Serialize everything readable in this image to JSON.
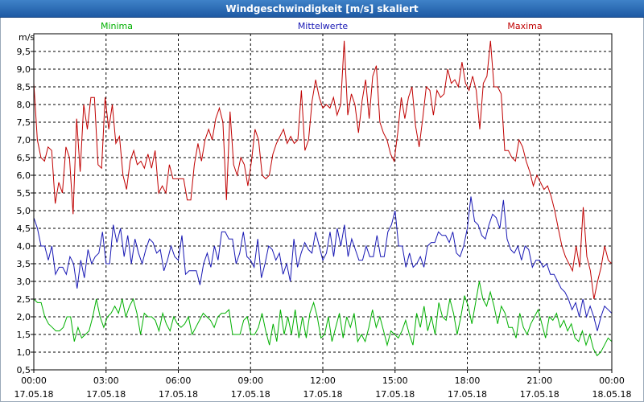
{
  "window": {
    "title": "Windgeschwindigkeit [m/s] skaliert"
  },
  "chart_data": {
    "type": "line",
    "title": "Windgeschwindigkeit [m/s] skaliert",
    "ylabel": "m/s",
    "xlabel": "",
    "ylim": [
      0.5,
      10.0
    ],
    "xlim": [
      0,
      24
    ],
    "yticks": [
      "0,5",
      "1,0",
      "1,5",
      "2,0",
      "2,5",
      "3,0",
      "3,5",
      "4,0",
      "4,5",
      "5,0",
      "5,5",
      "6,0",
      "6,5",
      "7,0",
      "7,5",
      "8,0",
      "8,5",
      "9,0",
      "9,5"
    ],
    "xticks": [
      {
        "time": "00:00",
        "date": "17.05.18"
      },
      {
        "time": "03:00",
        "date": "17.05.18"
      },
      {
        "time": "06:00",
        "date": "17.05.18"
      },
      {
        "time": "09:00",
        "date": "17.05.18"
      },
      {
        "time": "12:00",
        "date": "17.05.18"
      },
      {
        "time": "15:00",
        "date": "17.05.18"
      },
      {
        "time": "18:00",
        "date": "17.05.18"
      },
      {
        "time": "21:00",
        "date": "17.05.18"
      },
      {
        "time": "00:00",
        "date": "18.05.18"
      }
    ],
    "series": [
      {
        "name": "Minima",
        "color": "#00b000",
        "values": [
          2.5,
          2.4,
          2.4,
          2.0,
          1.8,
          1.7,
          1.6,
          1.6,
          1.7,
          2.0,
          2.0,
          1.3,
          1.7,
          1.4,
          1.5,
          1.6,
          2.0,
          2.5,
          2.0,
          1.7,
          2.0,
          2.1,
          2.3,
          2.1,
          2.5,
          2.0,
          2.3,
          2.5,
          2.1,
          1.5,
          2.1,
          2.0,
          2.0,
          1.9,
          1.6,
          2.1,
          1.8,
          1.6,
          2.0,
          1.8,
          1.7,
          1.8,
          2.0,
          1.5,
          1.7,
          1.9,
          2.1,
          2.0,
          1.9,
          1.7,
          2.0,
          2.1,
          2.1,
          2.2,
          1.5,
          1.5,
          1.5,
          1.9,
          2.0,
          1.5,
          1.5,
          1.7,
          2.1,
          1.6,
          1.2,
          1.8,
          1.3,
          2.2,
          1.5,
          2.0,
          1.5,
          2.2,
          1.4,
          2.0,
          1.4,
          2.1,
          2.4,
          2.0,
          1.4,
          1.5,
          2.0,
          1.3,
          1.7,
          2.1,
          1.4,
          2.0,
          1.7,
          2.1,
          1.3,
          1.5,
          1.3,
          1.7,
          2.2,
          1.7,
          2.0,
          1.6,
          1.2,
          1.6,
          1.5,
          1.4,
          1.6,
          1.9,
          1.5,
          1.2,
          2.1,
          1.7,
          2.3,
          1.6,
          2.0,
          1.5,
          2.4,
          2.0,
          1.9,
          2.5,
          2.1,
          1.5,
          2.0,
          2.6,
          2.3,
          1.8,
          2.4,
          3.0,
          2.5,
          2.3,
          2.7,
          2.3,
          1.8,
          2.3,
          2.1,
          1.7,
          1.7,
          1.4,
          2.1,
          1.7,
          1.5,
          1.8,
          2.0,
          2.2,
          1.8,
          1.4,
          2.0,
          1.9,
          2.1,
          1.7,
          1.9,
          1.6,
          1.8,
          1.4,
          1.3,
          1.6,
          1.2,
          1.5,
          1.1,
          0.9,
          1.0,
          1.2,
          1.4,
          1.3
        ]
      },
      {
        "name": "Mittelwerte",
        "color": "#1818b4",
        "values": [
          4.8,
          4.5,
          4.0,
          4.0,
          3.6,
          4.0,
          3.2,
          3.4,
          3.4,
          3.2,
          3.7,
          3.5,
          2.8,
          3.6,
          3.1,
          3.9,
          3.5,
          3.7,
          3.8,
          4.4,
          3.5,
          3.5,
          4.6,
          4.1,
          4.5,
          3.7,
          4.3,
          3.5,
          4.2,
          3.8,
          3.5,
          3.9,
          4.2,
          4.1,
          3.8,
          3.9,
          3.3,
          3.6,
          4.0,
          3.7,
          3.6,
          4.3,
          3.2,
          3.3,
          3.3,
          3.3,
          2.9,
          3.5,
          3.8,
          3.4,
          4.0,
          3.6,
          4.4,
          4.4,
          4.2,
          4.2,
          3.5,
          3.8,
          4.4,
          3.7,
          3.6,
          3.4,
          4.2,
          3.1,
          3.5,
          4.0,
          3.9,
          3.6,
          3.8,
          3.2,
          3.5,
          3.0,
          4.2,
          3.4,
          3.8,
          4.1,
          3.9,
          3.8,
          4.4,
          4.0,
          3.6,
          3.8,
          4.4,
          3.7,
          4.5,
          4.0,
          4.6,
          3.7,
          4.2,
          3.9,
          3.6,
          3.6,
          4.0,
          3.7,
          3.7,
          4.3,
          3.7,
          3.7,
          4.4,
          4.6,
          5.0,
          4.0,
          4.0,
          3.4,
          3.8,
          3.4,
          3.5,
          3.7,
          3.4,
          4.0,
          4.1,
          4.1,
          4.4,
          4.3,
          4.3,
          4.1,
          4.4,
          3.8,
          3.7,
          4.0,
          4.5,
          5.4,
          4.7,
          4.6,
          4.3,
          4.2,
          4.6,
          4.9,
          4.8,
          4.5,
          5.3,
          4.2,
          3.9,
          3.8,
          4.0,
          3.6,
          4.0,
          3.9,
          3.4,
          3.6,
          3.6,
          3.4,
          3.5,
          3.2,
          3.2,
          3.0,
          2.8,
          2.7,
          2.5,
          2.2,
          2.4,
          2.0,
          2.5,
          2.0,
          2.3,
          2.0,
          1.6,
          2.0,
          2.3,
          2.2,
          2.1
        ]
      },
      {
        "name": "Maxima",
        "color": "#c00000",
        "values": [
          8.6,
          7.0,
          6.5,
          6.4,
          6.8,
          6.7,
          5.2,
          5.8,
          5.5,
          6.8,
          6.5,
          4.9,
          7.6,
          6.1,
          8.0,
          7.3,
          8.2,
          8.2,
          6.3,
          6.2,
          8.2,
          7.3,
          8.0,
          6.9,
          7.1,
          6.0,
          5.6,
          6.4,
          6.7,
          6.3,
          6.4,
          6.2,
          6.6,
          6.2,
          6.7,
          5.5,
          5.7,
          5.5,
          6.3,
          5.9,
          5.9,
          5.9,
          5.9,
          5.3,
          5.3,
          6.3,
          6.9,
          6.4,
          7.0,
          7.3,
          7.0,
          7.6,
          7.9,
          7.5,
          5.3,
          7.8,
          6.3,
          6.0,
          6.5,
          6.3,
          5.7,
          6.4,
          7.3,
          7.0,
          6.0,
          5.9,
          6.0,
          6.6,
          6.9,
          7.1,
          7.3,
          6.9,
          7.1,
          6.9,
          7.0,
          8.4,
          6.7,
          7.0,
          8.1,
          8.7,
          8.2,
          7.9,
          8.0,
          7.9,
          8.2,
          7.7,
          8.0,
          9.8,
          7.7,
          8.3,
          8.0,
          7.2,
          8.1,
          8.7,
          7.6,
          8.8,
          9.1,
          7.5,
          7.2,
          7.0,
          6.6,
          6.4,
          7.2,
          8.2,
          7.6,
          8.2,
          8.5,
          7.4,
          6.8,
          7.6,
          8.5,
          8.4,
          7.7,
          8.4,
          8.2,
          8.3,
          9.0,
          8.6,
          8.7,
          8.5,
          9.2,
          8.6,
          8.4,
          8.8,
          8.4,
          7.3,
          8.6,
          8.8,
          9.8,
          8.5,
          8.5,
          8.3,
          6.7,
          6.7,
          6.5,
          6.4,
          7.0,
          6.8,
          6.4,
          6.1,
          5.7,
          6.0,
          5.8,
          5.6,
          5.7,
          5.4,
          5.0,
          4.5,
          4.0,
          3.7,
          3.5,
          3.3,
          4.0,
          3.4,
          5.1,
          3.7,
          3.3,
          2.5,
          3.0,
          3.4,
          4.0,
          3.6,
          3.5
        ]
      }
    ]
  }
}
